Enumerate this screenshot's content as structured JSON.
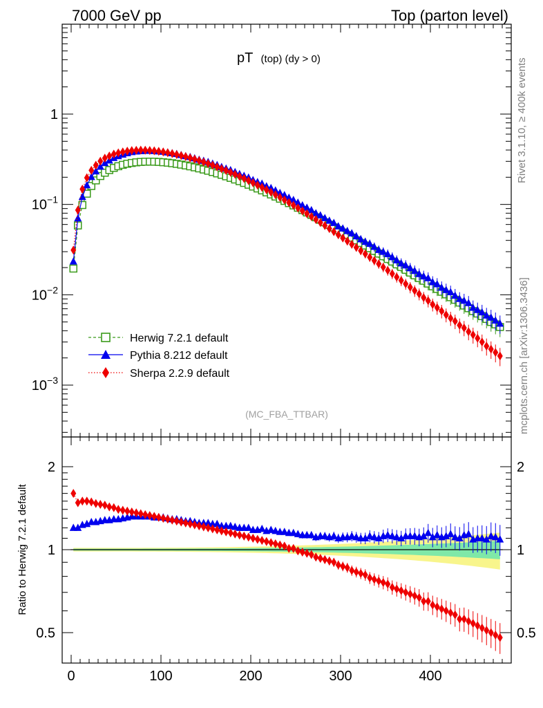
{
  "header": {
    "left": "7000 GeV pp",
    "right": "Top (parton level)"
  },
  "side_labels": {
    "rivet": "Rivet 3.1.10, ≥ 400k events",
    "source": "mcplots.cern.ch [arXiv:1306.3436]"
  },
  "plot_title": {
    "main": "pT",
    "sub": "(top) (dy > 0)"
  },
  "analysis_tag": "(MC_FBA_TTBAR)",
  "colors": {
    "herwig": "#3a9a1a",
    "pythia": "#0000ee",
    "sherpa": "#ee0000",
    "band_yellow": "#f8f58c",
    "band_green": "#7fe8a8"
  },
  "chart_data": [
    {
      "type": "line",
      "panel": "main",
      "y_scale": "log",
      "xlim": [
        -10,
        490
      ],
      "ylim": [
        0.0003,
        10
      ],
      "y_tick_labels": [
        "10^-3",
        "10^-2",
        "10^-1",
        "1"
      ],
      "x": [
        2.5,
        7.5,
        12.5,
        17.5,
        22.5,
        27.5,
        32.5,
        37.5,
        42.5,
        47.5,
        52.5,
        57.5,
        62.5,
        67.5,
        72.5,
        77.5,
        82.5,
        87.5,
        92.5,
        97.5,
        102.5,
        107.5,
        112.5,
        117.5,
        122.5,
        127.5,
        132.5,
        137.5,
        142.5,
        147.5,
        152.5,
        157.5,
        162.5,
        167.5,
        172.5,
        177.5,
        182.5,
        187.5,
        192.5,
        197.5,
        202.5,
        207.5,
        212.5,
        217.5,
        222.5,
        227.5,
        232.5,
        237.5,
        242.5,
        247.5,
        252.5,
        257.5,
        262.5,
        267.5,
        272.5,
        277.5,
        282.5,
        287.5,
        292.5,
        297.5,
        302.5,
        307.5,
        312.5,
        317.5,
        322.5,
        327.5,
        332.5,
        337.5,
        342.5,
        347.5,
        352.5,
        357.5,
        362.5,
        367.5,
        372.5,
        377.5,
        382.5,
        387.5,
        392.5,
        397.5,
        402.5,
        407.5,
        412.5,
        417.5,
        422.5,
        427.5,
        432.5,
        437.5,
        442.5,
        447.5,
        452.5,
        457.5,
        462.5,
        467.5,
        472.5,
        477.5
      ],
      "series": [
        {
          "name": "Herwig 7.2.1 default",
          "marker": "open-square",
          "line": "dashed",
          "values": [
            0.0195,
            0.0585,
            0.0985,
            0.1315,
            0.1599,
            0.1845,
            0.2063,
            0.2245,
            0.2401,
            0.2537,
            0.2648,
            0.2743,
            0.2819,
            0.2879,
            0.2924,
            0.2954,
            0.2971,
            0.2976,
            0.2971,
            0.2955,
            0.293,
            0.2898,
            0.2858,
            0.2811,
            0.2759,
            0.2702,
            0.2641,
            0.2575,
            0.2506,
            0.2434,
            0.236,
            0.2284,
            0.2206,
            0.2127,
            0.2047,
            0.1968,
            0.1888,
            0.1809,
            0.173,
            0.1653,
            0.1577,
            0.1502,
            0.143,
            0.1359,
            0.1289,
            0.1222,
            0.1157,
            0.1094,
            0.1034,
            0.0975,
            0.0919,
            0.0866,
            0.0815,
            0.0766,
            0.072,
            0.0676,
            0.0634,
            0.0595,
            0.0557,
            0.0522,
            0.0489,
            0.0458,
            0.0429,
            0.0401,
            0.0375,
            0.0351,
            0.0328,
            0.0306,
            0.0286,
            0.0267,
            0.0249,
            0.0233,
            0.0217,
            0.0203,
            0.0189,
            0.0176,
            0.0164,
            0.0153,
            0.0143,
            0.0133,
            0.0124,
            0.0116,
            0.0108,
            0.0101,
            0.0094,
            0.0088,
            0.0082,
            0.0076,
            0.0071,
            0.0066,
            0.0062,
            0.0058,
            0.0054,
            0.005,
            0.0047,
            0.0044
          ]
        },
        {
          "name": "Pythia 8.212 default",
          "marker": "filled-triangle",
          "line": "solid",
          "values": [
            0.0234,
            0.0702,
            0.1211,
            0.1631,
            0.2015,
            0.2325,
            0.262,
            0.2873,
            0.3073,
            0.3273,
            0.3428,
            0.3566,
            0.3693,
            0.3801,
            0.386,
            0.3899,
            0.3922,
            0.3928,
            0.3901,
            0.3871,
            0.3838,
            0.3767,
            0.3692,
            0.362,
            0.3531,
            0.3432,
            0.3354,
            0.3244,
            0.3133,
            0.3043,
            0.295,
            0.2833,
            0.2735,
            0.2595,
            0.2497,
            0.24,
            0.2285,
            0.2171,
            0.2076,
            0.1984,
            0.1861,
            0.1772,
            0.1702,
            0.159,
            0.1521,
            0.143,
            0.1342,
            0.1269,
            0.1189,
            0.1121,
            0.1048,
            0.0979,
            0.0921,
            0.0866,
            0.08,
            0.0758,
            0.0707,
            0.0661,
            0.0624,
            0.0573,
            0.0543,
            0.0509,
            0.048,
            0.0445,
            0.0412,
            0.0386,
            0.0367,
            0.034,
            0.0314,
            0.0299,
            0.0282,
            0.0261,
            0.0241,
            0.0223,
            0.0212,
            0.0197,
            0.0184,
            0.017,
            0.016,
            0.0153,
            0.0138,
            0.0131,
            0.012,
            0.0113,
            0.0107,
            0.0098,
            0.009,
            0.0086,
            0.0081,
            0.0072,
            0.0068,
            0.0064,
            0.0059,
            0.0056,
            0.0052,
            0.0048
          ]
        },
        {
          "name": "Sherpa 2.2.9 default",
          "marker": "filled-diamond",
          "line": "dotted",
          "values": [
            0.0312,
            0.0866,
            0.1479,
            0.1972,
            0.2383,
            0.2712,
            0.3012,
            0.3253,
            0.3433,
            0.3603,
            0.372,
            0.381,
            0.389,
            0.3945,
            0.3973,
            0.3989,
            0.3981,
            0.3958,
            0.3924,
            0.3871,
            0.3809,
            0.3739,
            0.3658,
            0.3567,
            0.3476,
            0.338,
            0.3275,
            0.3168,
            0.3057,
            0.2945,
            0.2832,
            0.2718,
            0.2603,
            0.2488,
            0.2375,
            0.2263,
            0.2152,
            0.2044,
            0.1938,
            0.1835,
            0.1735,
            0.1637,
            0.1544,
            0.1452,
            0.1365,
            0.1281,
            0.12,
            0.1123,
            0.1049,
            0.098,
            0.0913,
            0.0849,
            0.079,
            0.0734,
            0.068,
            0.063,
            0.0583,
            0.054,
            0.0499,
            0.0461,
            0.0425,
            0.0392,
            0.0362,
            0.0334,
            0.0307,
            0.0283,
            0.026,
            0.0239,
            0.022,
            0.0202,
            0.0186,
            0.0171,
            0.0157,
            0.0144,
            0.0132,
            0.0121,
            0.0111,
            0.0102,
            0.0093,
            0.0086,
            0.0078,
            0.0072,
            0.0066,
            0.006,
            0.0055,
            0.0051,
            0.0046,
            0.0043,
            0.0039,
            0.0036,
            0.0033,
            0.003,
            0.0027,
            0.0025,
            0.0023,
            0.0021
          ]
        }
      ]
    },
    {
      "type": "line",
      "panel": "ratio",
      "ylabel": "Ratio to Herwig 7.2.1 default",
      "y_scale": "log",
      "xlim": [
        -10,
        490
      ],
      "ylim": [
        0.4,
        2.4
      ],
      "x_ticks": [
        0,
        100,
        200,
        300,
        400
      ],
      "y_ticks": [
        0.5,
        1,
        2
      ],
      "x": [
        2.5,
        7.5,
        12.5,
        17.5,
        22.5,
        27.5,
        32.5,
        37.5,
        42.5,
        47.5,
        52.5,
        57.5,
        62.5,
        67.5,
        72.5,
        77.5,
        82.5,
        87.5,
        92.5,
        97.5,
        102.5,
        107.5,
        112.5,
        117.5,
        122.5,
        127.5,
        132.5,
        137.5,
        142.5,
        147.5,
        152.5,
        157.5,
        162.5,
        167.5,
        172.5,
        177.5,
        182.5,
        187.5,
        192.5,
        197.5,
        202.5,
        207.5,
        212.5,
        217.5,
        222.5,
        227.5,
        232.5,
        237.5,
        242.5,
        247.5,
        252.5,
        257.5,
        262.5,
        267.5,
        272.5,
        277.5,
        282.5,
        287.5,
        292.5,
        297.5,
        302.5,
        307.5,
        312.5,
        317.5,
        322.5,
        327.5,
        332.5,
        337.5,
        342.5,
        347.5,
        352.5,
        357.5,
        362.5,
        367.5,
        372.5,
        377.5,
        382.5,
        387.5,
        392.5,
        397.5,
        402.5,
        407.5,
        412.5,
        417.5,
        422.5,
        427.5,
        432.5,
        437.5,
        442.5,
        447.5,
        452.5,
        457.5,
        462.5,
        467.5,
        472.5,
        477.5
      ],
      "reference": {
        "name": "Herwig 7.2.1 default",
        "value": 1.0
      },
      "series": [
        {
          "name": "Pythia 8.212 default",
          "values": [
            1.2,
            1.2,
            1.23,
            1.24,
            1.26,
            1.26,
            1.27,
            1.28,
            1.28,
            1.29,
            1.29,
            1.3,
            1.31,
            1.32,
            1.32,
            1.32,
            1.32,
            1.32,
            1.31,
            1.31,
            1.31,
            1.3,
            1.29,
            1.29,
            1.28,
            1.27,
            1.27,
            1.26,
            1.25,
            1.25,
            1.25,
            1.24,
            1.24,
            1.22,
            1.22,
            1.22,
            1.21,
            1.2,
            1.2,
            1.2,
            1.18,
            1.18,
            1.19,
            1.17,
            1.18,
            1.17,
            1.16,
            1.16,
            1.15,
            1.15,
            1.14,
            1.13,
            1.13,
            1.13,
            1.11,
            1.12,
            1.12,
            1.11,
            1.12,
            1.1,
            1.11,
            1.11,
            1.12,
            1.11,
            1.1,
            1.1,
            1.12,
            1.11,
            1.1,
            1.12,
            1.13,
            1.12,
            1.11,
            1.1,
            1.12,
            1.12,
            1.12,
            1.11,
            1.12,
            1.15,
            1.11,
            1.13,
            1.11,
            1.12,
            1.14,
            1.11,
            1.1,
            1.13,
            1.14,
            1.09,
            1.1,
            1.1,
            1.09,
            1.12,
            1.11,
            1.09
          ]
        },
        {
          "name": "Sherpa 2.2.9 default",
          "values": [
            1.6,
            1.48,
            1.5,
            1.5,
            1.49,
            1.47,
            1.46,
            1.45,
            1.43,
            1.42,
            1.4,
            1.39,
            1.38,
            1.37,
            1.36,
            1.35,
            1.34,
            1.33,
            1.32,
            1.31,
            1.3,
            1.29,
            1.28,
            1.27,
            1.26,
            1.25,
            1.24,
            1.23,
            1.22,
            1.21,
            1.2,
            1.19,
            1.18,
            1.17,
            1.16,
            1.15,
            1.14,
            1.13,
            1.12,
            1.11,
            1.1,
            1.09,
            1.08,
            1.07,
            1.06,
            1.05,
            1.04,
            1.03,
            1.01,
            1.01,
            0.99,
            0.98,
            0.97,
            0.96,
            0.94,
            0.93,
            0.92,
            0.91,
            0.9,
            0.88,
            0.87,
            0.86,
            0.84,
            0.83,
            0.82,
            0.81,
            0.79,
            0.78,
            0.77,
            0.76,
            0.75,
            0.73,
            0.72,
            0.71,
            0.7,
            0.69,
            0.68,
            0.67,
            0.65,
            0.65,
            0.63,
            0.62,
            0.61,
            0.6,
            0.59,
            0.58,
            0.56,
            0.56,
            0.55,
            0.54,
            0.53,
            0.52,
            0.51,
            0.5,
            0.49,
            0.48
          ]
        }
      ]
    }
  ]
}
